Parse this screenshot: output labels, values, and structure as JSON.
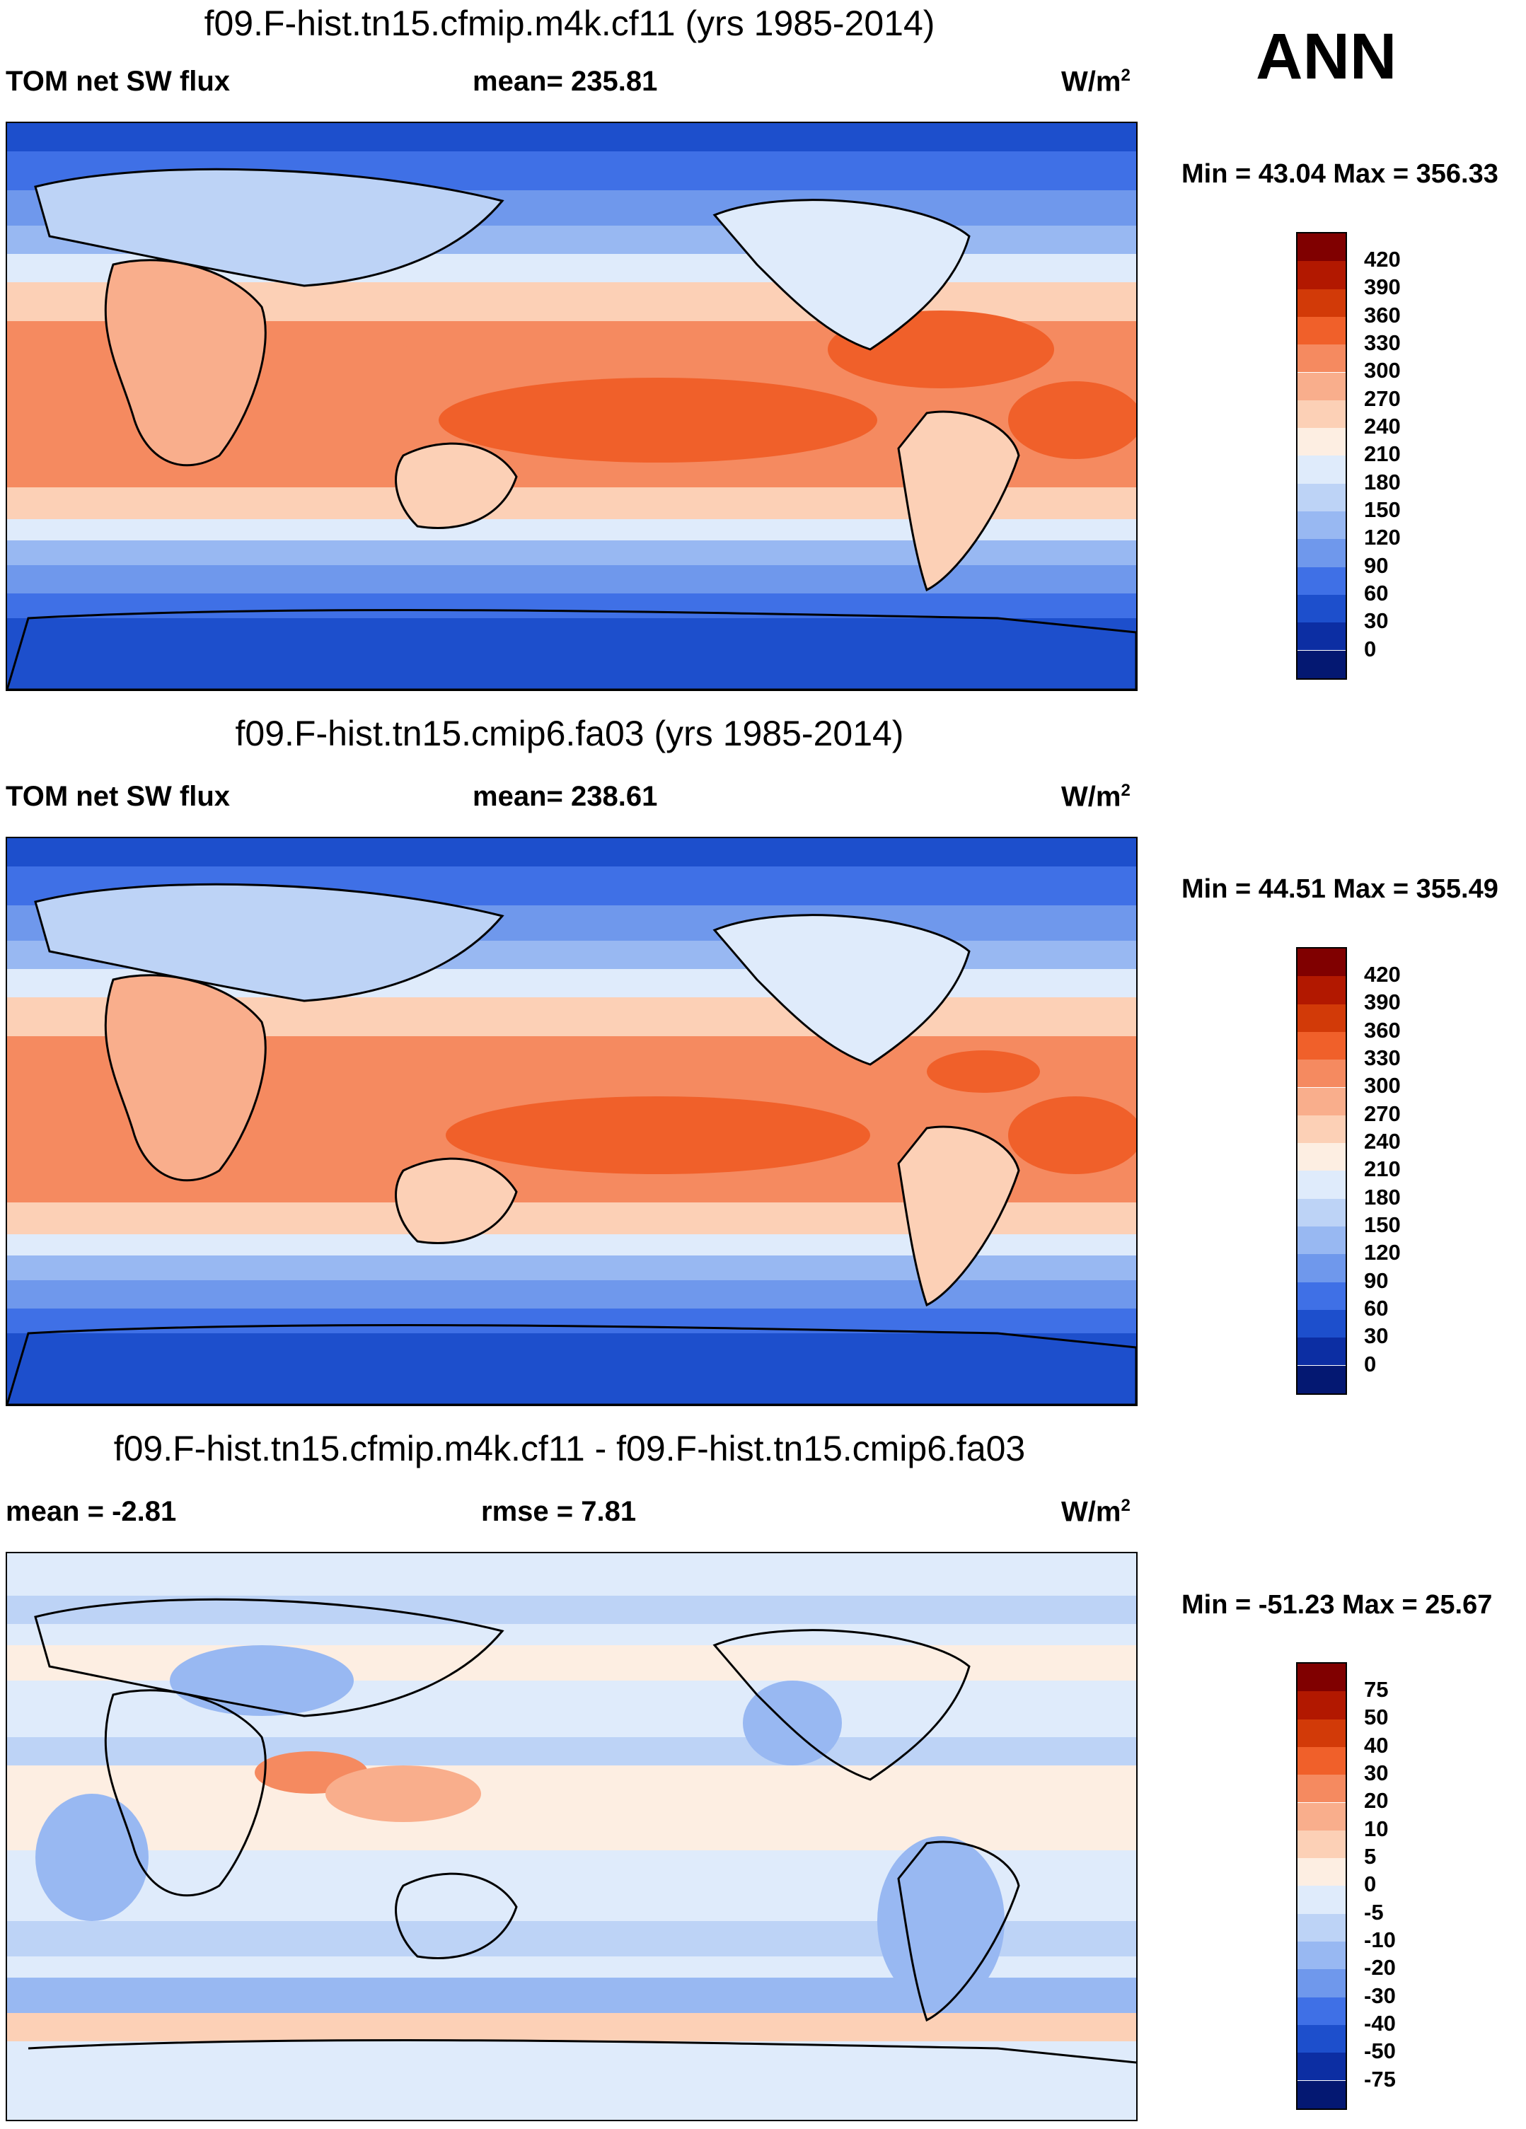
{
  "season_label": "ANN",
  "chart_data": [
    {
      "type": "heatmap",
      "title": "f09.F-hist.tn15.cfmip.m4k.cf11 (yrs 1985-2014)",
      "left_label": "TOM net SW flux",
      "center_label": "mean= 235.81",
      "units": "W/m",
      "units_exp": "2",
      "minmax": "Min =  43.04 Max = 356.33",
      "field_mean": 235.81,
      "field_min": 43.04,
      "field_max": 356.33,
      "projection": "cylindrical-equidistant, 0E centered on Pacific",
      "colorbar": {
        "levels": [
          "420",
          "390",
          "360",
          "330",
          "300",
          "270",
          "240",
          "210",
          "180",
          "150",
          "120",
          "90",
          "60",
          "30",
          "0"
        ],
        "colors": [
          "#800000",
          "#b21800",
          "#d23a08",
          "#f0602a",
          "#f58a60",
          "#f9ae8c",
          "#fcd0b6",
          "#fdeee2",
          "#dfebfb",
          "#bdd3f6",
          "#98b8f2",
          "#6f98ec",
          "#3f70e6",
          "#1d4fcc",
          "#0c2ea3",
          "#041872"
        ]
      }
    },
    {
      "type": "heatmap",
      "title": "f09.F-hist.tn15.cmip6.fa03 (yrs 1985-2014)",
      "left_label": "TOM net SW flux",
      "center_label": "mean= 238.61",
      "units": "W/m",
      "units_exp": "2",
      "minmax": "Min =  44.51 Max = 355.49",
      "field_mean": 238.61,
      "field_min": 44.51,
      "field_max": 355.49,
      "projection": "cylindrical-equidistant, 0E centered on Pacific",
      "colorbar": {
        "levels": [
          "420",
          "390",
          "360",
          "330",
          "300",
          "270",
          "240",
          "210",
          "180",
          "150",
          "120",
          "90",
          "60",
          "30",
          "0"
        ],
        "colors": [
          "#800000",
          "#b21800",
          "#d23a08",
          "#f0602a",
          "#f58a60",
          "#f9ae8c",
          "#fcd0b6",
          "#fdeee2",
          "#dfebfb",
          "#bdd3f6",
          "#98b8f2",
          "#6f98ec",
          "#3f70e6",
          "#1d4fcc",
          "#0c2ea3",
          "#041872"
        ]
      }
    },
    {
      "type": "heatmap",
      "title": "f09.F-hist.tn15.cfmip.m4k.cf11 - f09.F-hist.tn15.cmip6.fa03",
      "left_label": "mean =  -2.81",
      "center_label": "rmse =   7.81",
      "units": "W/m",
      "units_exp": "2",
      "minmax": "Min = -51.23 Max =  25.67",
      "field_mean": -2.81,
      "field_rmse": 7.81,
      "field_min": -51.23,
      "field_max": 25.67,
      "projection": "cylindrical-equidistant, 0E centered on Pacific",
      "colorbar": {
        "levels": [
          "75",
          "50",
          "40",
          "30",
          "20",
          "10",
          "5",
          "0",
          "-5",
          "-10",
          "-20",
          "-30",
          "-40",
          "-50",
          "-75"
        ],
        "colors": [
          "#800000",
          "#b21800",
          "#d23a08",
          "#f0602a",
          "#f58a60",
          "#f9ae8c",
          "#fcd0b6",
          "#fdeee2",
          "#dfebfb",
          "#bdd3f6",
          "#98b8f2",
          "#6f98ec",
          "#3f70e6",
          "#1d4fcc",
          "#0c2ea3",
          "#041872"
        ]
      }
    }
  ]
}
